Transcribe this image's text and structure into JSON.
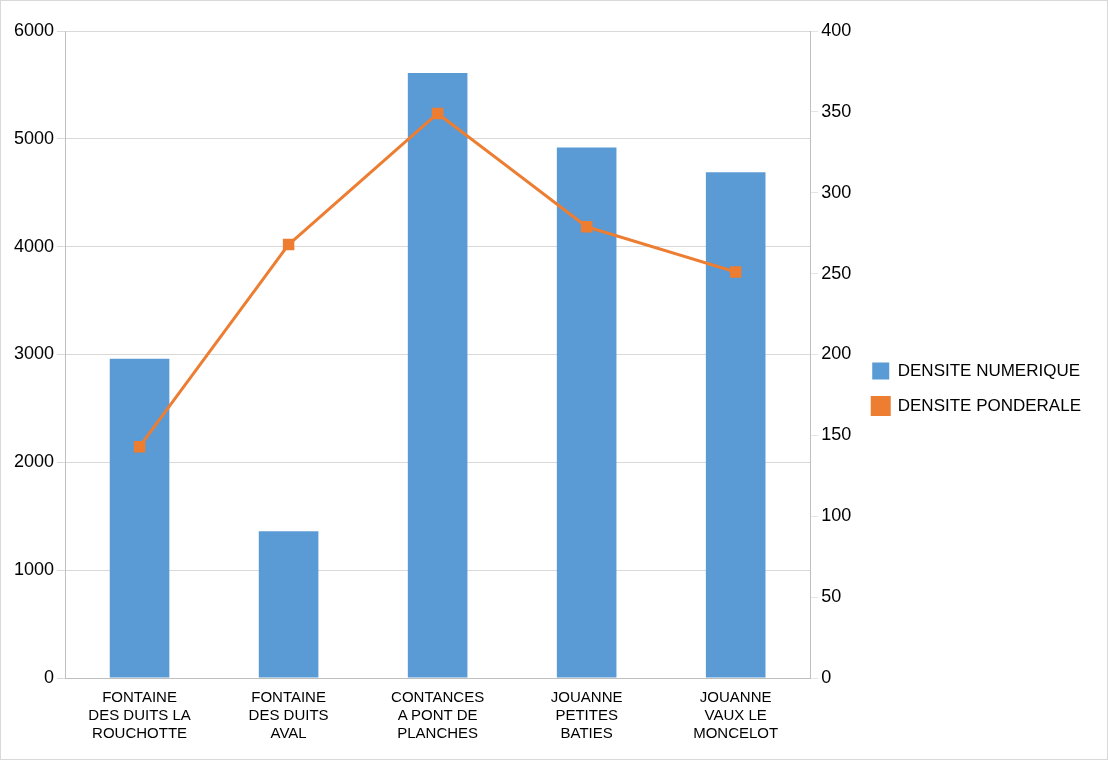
{
  "chart_data": {
    "type": "bar",
    "categories": [
      "FONTAINE DES DUITS LA ROUCHOTTE",
      "FONTAINE DES DUITS AVAL",
      "CONTANCES A PONT DE PLANCHES",
      "JOUANNE PETITES BATIES",
      "JOUANNE VAUX LE MONCELOT"
    ],
    "series": [
      {
        "name": "DENSITE NUMERIQUE",
        "color": "#5b9bd5",
        "values": [
          2960,
          1360,
          5610,
          4920,
          4690
        ]
      },
      {
        "name": "DENSITE PONDERALE",
        "type": "line",
        "axis": "y2",
        "color": "#ed7d31",
        "values": [
          143,
          268,
          349,
          279,
          251
        ]
      }
    ],
    "ylim": [
      0,
      6000
    ],
    "yticks": [
      0,
      1000,
      2000,
      3000,
      4000,
      5000,
      6000
    ],
    "y2lim": [
      0,
      400
    ],
    "y2ticks": [
      0,
      50,
      100,
      150,
      200,
      250,
      300,
      350,
      400
    ],
    "grid": "y",
    "legend": "right",
    "marker": "square",
    "line_style": "solid"
  }
}
